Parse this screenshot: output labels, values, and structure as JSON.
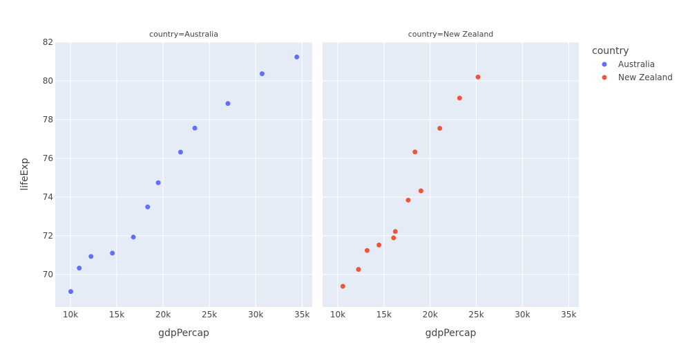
{
  "chart_data": {
    "type": "scatter",
    "title": "",
    "facet_by": "country",
    "xlabel": "gdpPercap",
    "ylabel": "lifeExp",
    "xlim": [
      8360,
      36100
    ],
    "ylim": [
      68.32,
      82.0
    ],
    "x_ticks": [
      10000,
      15000,
      20000,
      25000,
      30000,
      35000
    ],
    "x_tick_labels": [
      "10k",
      "15k",
      "20k",
      "25k",
      "30k",
      "35k"
    ],
    "y_ticks": [
      70,
      72,
      74,
      76,
      78,
      80,
      82
    ],
    "y_tick_labels": [
      "70",
      "72",
      "74",
      "76",
      "78",
      "80",
      "82"
    ],
    "grid": true,
    "legend_position": "right",
    "legend_title": "country",
    "plot_bgcolor": "#E5ECF6",
    "grid_color": "#FFFFFF",
    "facets": [
      {
        "title": "country=Australia",
        "series": [
          {
            "name": "Australia",
            "color": "#636EFA",
            "x": [
              10039.6,
              10949.65,
              12217.23,
              14526.12,
              16788.63,
              18334.2,
              19477.01,
              21888.89,
              23424.77,
              26997.94,
              30687.75,
              34435.37
            ],
            "y": [
              69.12,
              70.33,
              70.93,
              71.1,
              71.93,
              73.49,
              74.74,
              76.32,
              77.56,
              78.83,
              80.37,
              81.235
            ]
          }
        ]
      },
      {
        "title": "country=New Zealand",
        "series": [
          {
            "name": "New Zealand",
            "color": "#EF553B",
            "x": [
              10556.58,
              12247.4,
              13175.68,
              14463.92,
              16046.04,
              16233.72,
              17632.41,
              19007.19,
              18363.32,
              21050.41,
              23189.8,
              25185.01
            ],
            "y": [
              69.39,
              70.26,
              71.24,
              71.52,
              71.89,
              72.22,
              73.84,
              74.32,
              76.33,
              77.55,
              79.11,
              80.2
            ]
          }
        ]
      }
    ],
    "legend": [
      {
        "name": "Australia",
        "color": "#636EFA"
      },
      {
        "name": "New Zealand",
        "color": "#EF553B"
      }
    ]
  }
}
